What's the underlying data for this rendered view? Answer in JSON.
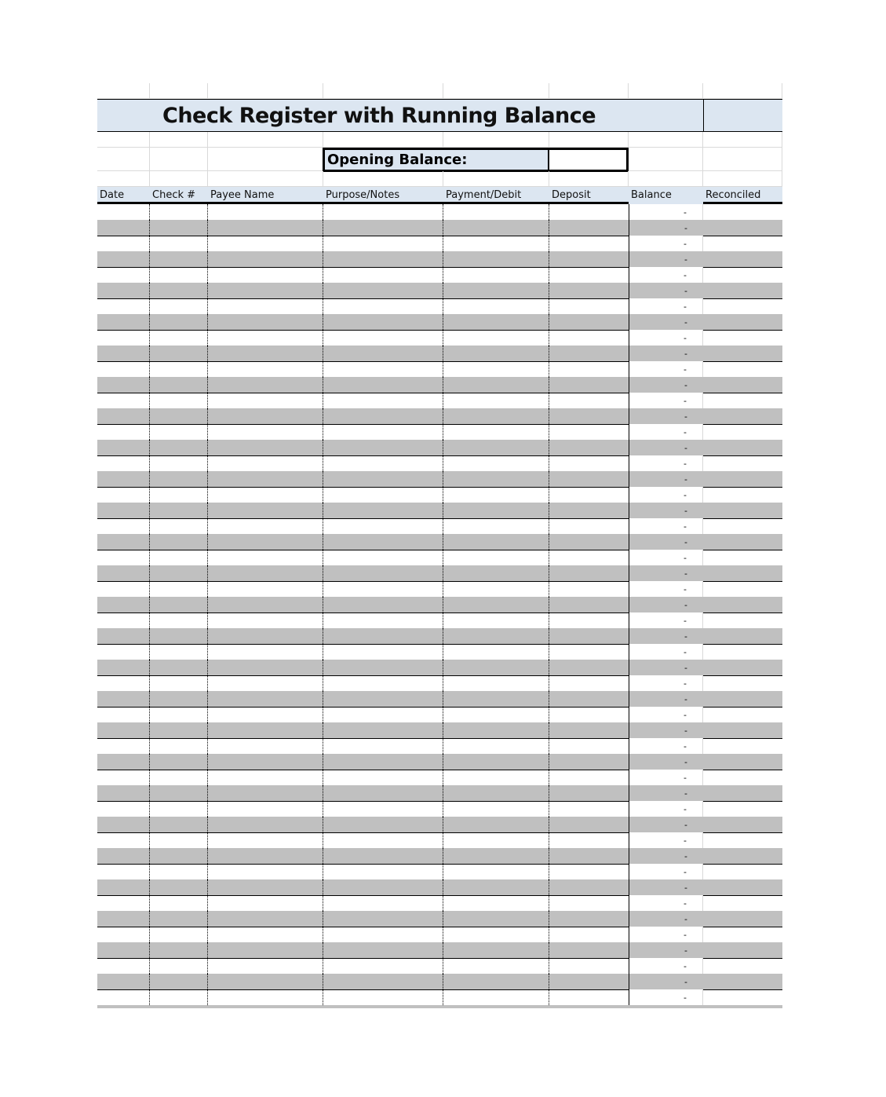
{
  "title": "Check Register with Running Balance",
  "opening_balance": {
    "label": "Opening Balance:",
    "value": ""
  },
  "columns": [
    "Date",
    "Check #",
    "Payee Name",
    "Purpose/Notes",
    "Payment/Debit",
    "Deposit",
    "Balance",
    "Reconciled"
  ],
  "rows": [
    {
      "balance": "-"
    },
    {
      "balance": "-"
    },
    {
      "balance": "-"
    },
    {
      "balance": "-"
    },
    {
      "balance": "-"
    },
    {
      "balance": "-"
    },
    {
      "balance": "-"
    },
    {
      "balance": "-"
    },
    {
      "balance": "-"
    },
    {
      "balance": "-"
    },
    {
      "balance": "-"
    },
    {
      "balance": "-"
    },
    {
      "balance": "-"
    },
    {
      "balance": "-"
    },
    {
      "balance": "-"
    },
    {
      "balance": "-"
    },
    {
      "balance": "-"
    },
    {
      "balance": "-"
    },
    {
      "balance": "-"
    },
    {
      "balance": "-"
    },
    {
      "balance": "-"
    },
    {
      "balance": "-"
    },
    {
      "balance": "-"
    },
    {
      "balance": "-"
    },
    {
      "balance": "-"
    },
    {
      "balance": "-"
    },
    {
      "balance": "-"
    },
    {
      "balance": "-"
    },
    {
      "balance": "-"
    },
    {
      "balance": "-"
    },
    {
      "balance": "-"
    },
    {
      "balance": "-"
    },
    {
      "balance": "-"
    },
    {
      "balance": "-"
    },
    {
      "balance": "-"
    },
    {
      "balance": "-"
    },
    {
      "balance": "-"
    },
    {
      "balance": "-"
    },
    {
      "balance": "-"
    },
    {
      "balance": "-"
    },
    {
      "balance": "-"
    },
    {
      "balance": "-"
    },
    {
      "balance": "-"
    },
    {
      "balance": "-"
    },
    {
      "balance": "-"
    },
    {
      "balance": "-"
    },
    {
      "balance": "-"
    },
    {
      "balance": "-"
    },
    {
      "balance": "-"
    },
    {
      "balance": "-"
    },
    {
      "balance": "-"
    }
  ],
  "colors": {
    "header_fill": "#dce6f1",
    "stripe_fill": "#c0c0c0"
  }
}
